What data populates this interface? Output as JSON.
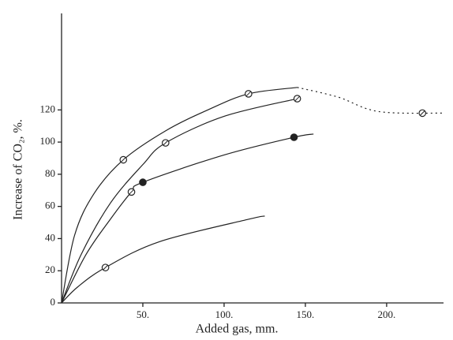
{
  "chart_data": {
    "type": "scatter",
    "x_label": "Added gas, mm.",
    "y_label": "Increase of CO₂, %.",
    "xlim": [
      0,
      235
    ],
    "ylim": [
      0,
      180
    ],
    "xticks": [
      {
        "value": 50,
        "label": "50."
      },
      {
        "value": 100,
        "label": "100."
      },
      {
        "value": 150,
        "label": "150."
      },
      {
        "value": 200,
        "label": "200."
      }
    ],
    "yticks": [
      0,
      20,
      40,
      60,
      80,
      100,
      120
    ],
    "series": [
      {
        "marker": "open",
        "x": [
          27,
          38,
          43,
          64,
          115,
          145,
          222
        ],
        "values": [
          22,
          89,
          69,
          99.5,
          130,
          127,
          118
        ]
      },
      {
        "marker": "filled",
        "x": [
          50,
          143
        ],
        "values": [
          75,
          103
        ]
      }
    ],
    "curves": [
      {
        "style": "solid",
        "x": [
          0,
          8,
          20,
          38,
          64,
          90,
          115,
          145
        ],
        "y": [
          0,
          42,
          68,
          89,
          107,
          120,
          130,
          134
        ]
      },
      {
        "style": "solid",
        "x": [
          0,
          12,
          30,
          50,
          64,
          100,
          145
        ],
        "y": [
          0,
          30,
          62,
          86,
          99.5,
          116,
          127
        ]
      },
      {
        "style": "solid",
        "x": [
          0,
          15,
          30,
          43,
          50,
          100,
          143,
          155
        ],
        "y": [
          0,
          30,
          52,
          69,
          75,
          92,
          103,
          105
        ]
      },
      {
        "style": "solid",
        "x": [
          0,
          10,
          27,
          60,
          115,
          125
        ],
        "y": [
          0,
          10,
          22,
          38,
          52,
          54
        ]
      },
      {
        "style": "dotted",
        "x": [
          145,
          170,
          195,
          235
        ],
        "y": [
          134,
          128,
          119,
          118
        ]
      }
    ]
  }
}
